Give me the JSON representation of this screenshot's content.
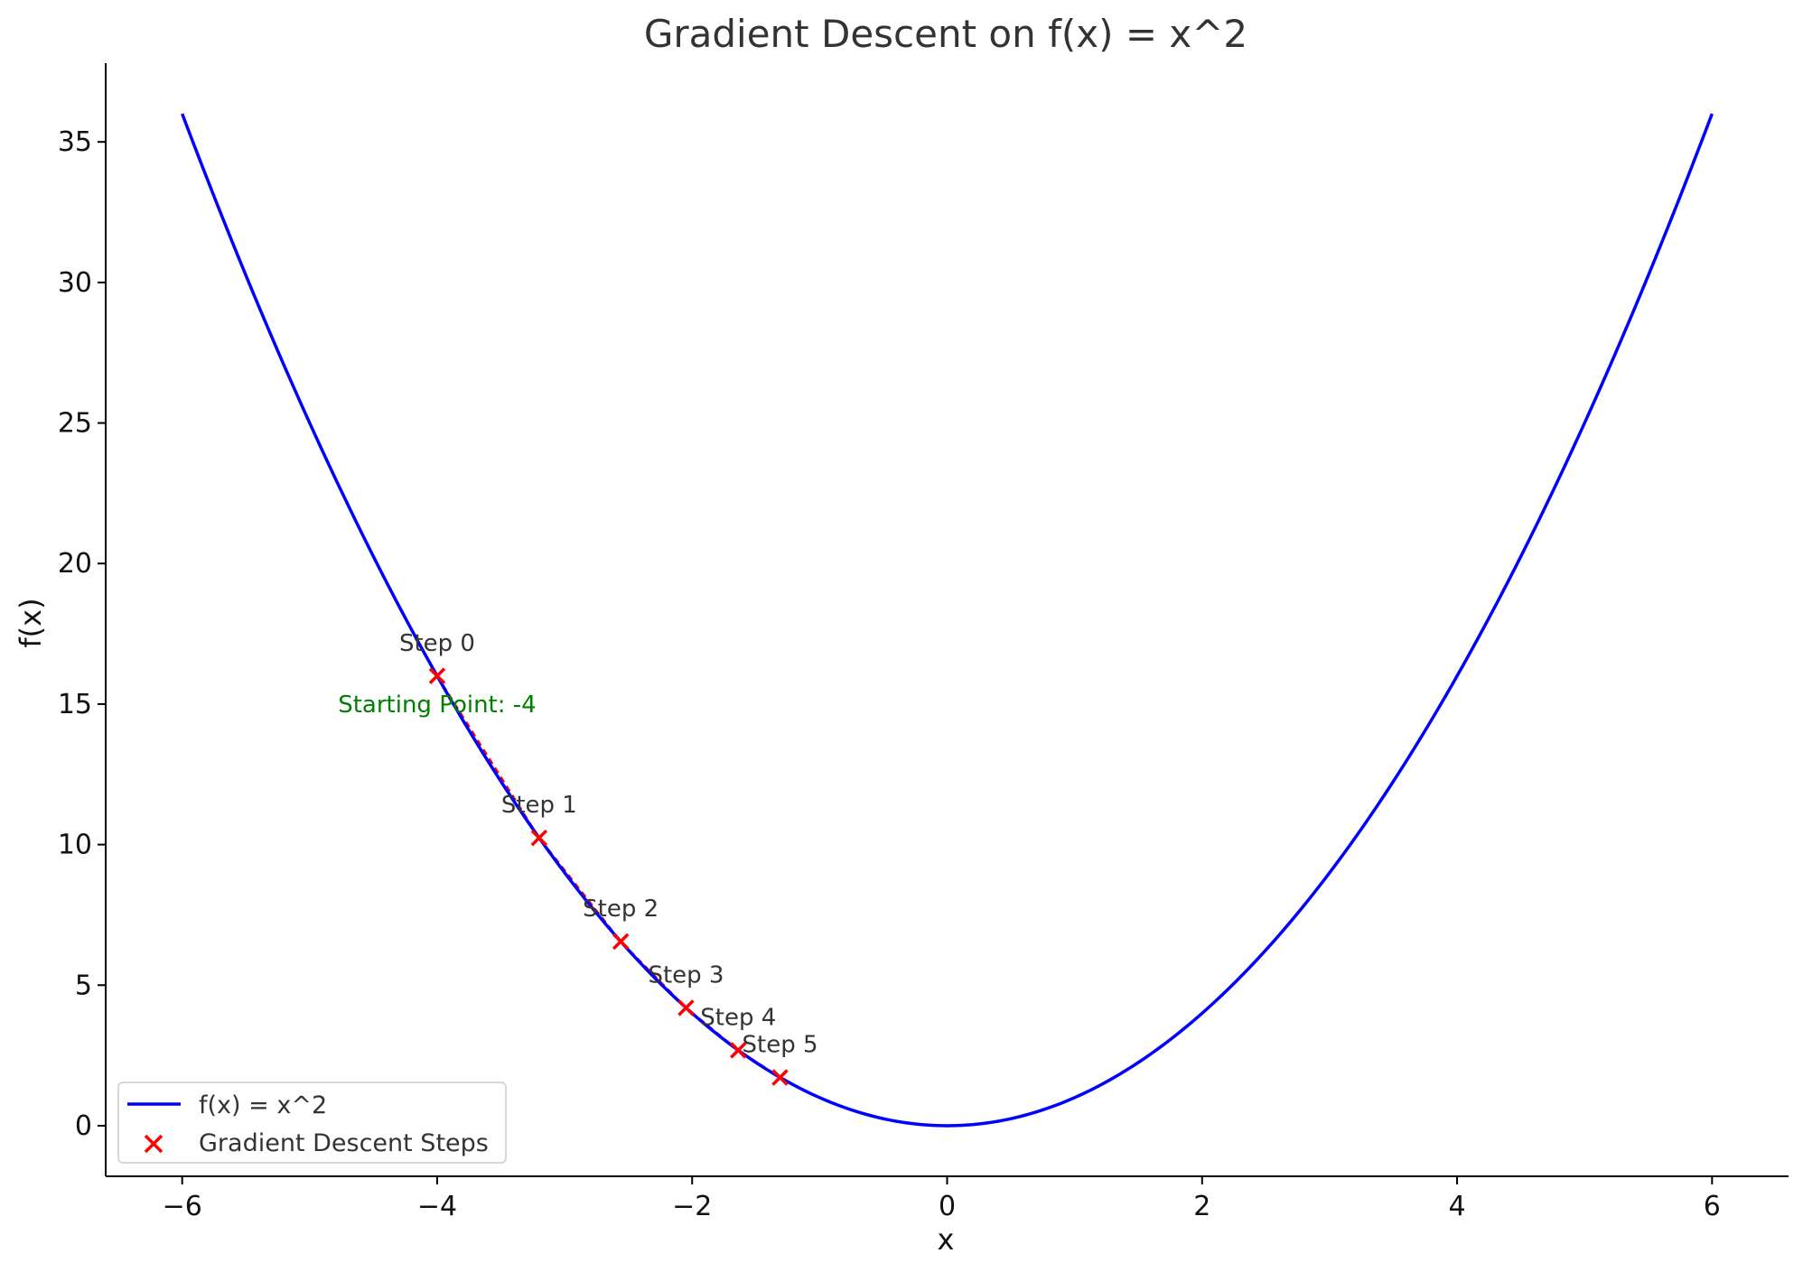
{
  "chart_data": {
    "type": "line",
    "title": "Gradient Descent on f(x) = x^2",
    "xlabel": "x",
    "ylabel": "f(x)",
    "xlim": [
      -6.6,
      6.6
    ],
    "ylim": [
      -1.8,
      37.8
    ],
    "x_ticks": [
      -6,
      -4,
      -2,
      0,
      2,
      4,
      6
    ],
    "x_tick_labels": [
      "−6",
      "−4",
      "−2",
      "0",
      "2",
      "4",
      "6"
    ],
    "y_ticks": [
      0,
      5,
      10,
      15,
      20,
      25,
      30,
      35
    ],
    "y_tick_labels": [
      "0",
      "5",
      "10",
      "15",
      "20",
      "25",
      "30",
      "35"
    ],
    "grid": false,
    "legend_position": "lower-left",
    "series": [
      {
        "name": "f(x) = x^2",
        "kind": "line",
        "color": "#0000ff",
        "function": "x^2",
        "x_range": [
          -6,
          6
        ]
      },
      {
        "name": "Gradient Descent Steps",
        "kind": "scatter",
        "marker": "x",
        "color": "#ff0000",
        "x": [
          -4.0,
          -3.2,
          -2.56,
          -2.048,
          -1.6384,
          -1.31072
        ],
        "y": [
          16.0,
          10.24,
          6.5536,
          4.194,
          2.684,
          1.718
        ],
        "labels": [
          "Step 0",
          "Step 1",
          "Step 2",
          "Step 3",
          "Step 4",
          "Step 5"
        ]
      }
    ],
    "annotations": [
      {
        "text": "Starting Point: -4",
        "x": -4,
        "y": 15,
        "color": "#008000"
      }
    ]
  }
}
